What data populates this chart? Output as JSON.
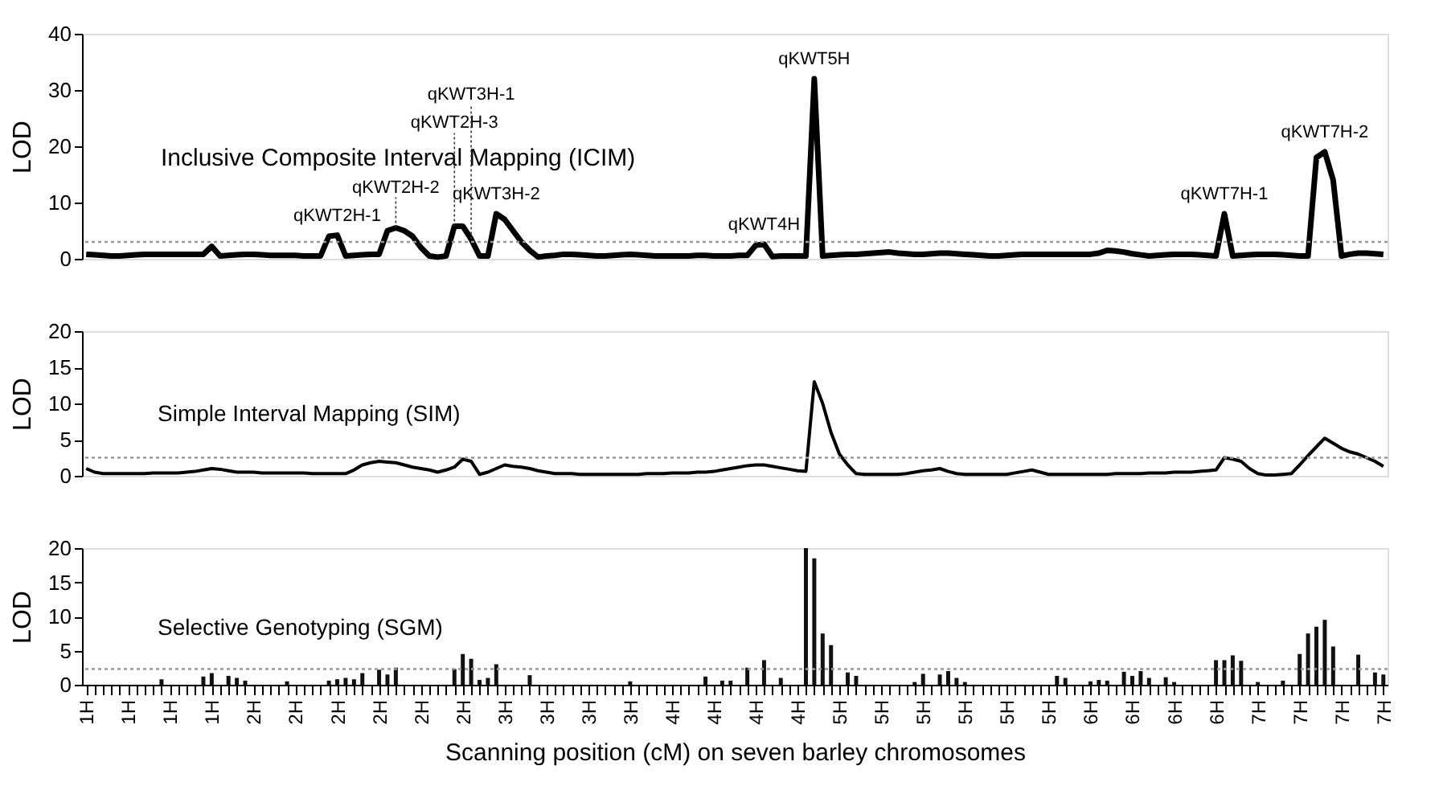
{
  "chart_data": [
    {
      "type": "line",
      "title": "Inclusive Composite Interval Mapping (ICIM)",
      "ylabel": "LOD",
      "ylim": [
        0,
        40
      ],
      "yticks": [
        0,
        10,
        20,
        30,
        40
      ],
      "tick_labels": "y",
      "categories": [
        null,
        null,
        null,
        null,
        null,
        null,
        null,
        null,
        null,
        null,
        null,
        null,
        null,
        null,
        null,
        null,
        null,
        null,
        null,
        null,
        null,
        null,
        null,
        null,
        null,
        null,
        null,
        null,
        null,
        null,
        null,
        null,
        null,
        null,
        null,
        null,
        null,
        null,
        null,
        null,
        null,
        null,
        null,
        null,
        null,
        null,
        null,
        null,
        null,
        null,
        null,
        null,
        null,
        null,
        null,
        null,
        null,
        null,
        null,
        null,
        null,
        null,
        null,
        null,
        null,
        null,
        null,
        null,
        null,
        null,
        null,
        null,
        null,
        null,
        null,
        null,
        null,
        null,
        null,
        null,
        null,
        null,
        null,
        null,
        null,
        null,
        null,
        null,
        null,
        null,
        null,
        null,
        null,
        null,
        null,
        null,
        null,
        null,
        null,
        null,
        null,
        null,
        null,
        null,
        null,
        null,
        null,
        null,
        null,
        null,
        null,
        null,
        null,
        null,
        null,
        null,
        null,
        null,
        null,
        null,
        null,
        null,
        null,
        null,
        null,
        null,
        null,
        null,
        null,
        null,
        null,
        null,
        null,
        null,
        null,
        null,
        null,
        null,
        null,
        null,
        null,
        null,
        null,
        null,
        null,
        null,
        null,
        null,
        null,
        null,
        null,
        null,
        null,
        null,
        null,
        null
      ],
      "series": [
        {
          "color": "#000000",
          "values": [
            0.8,
            0.7,
            0.6,
            0.5,
            0.5,
            0.6,
            0.7,
            0.8,
            0.8,
            0.8,
            0.8,
            0.8,
            0.8,
            0.8,
            0.8,
            2.2,
            0.5,
            0.6,
            0.7,
            0.8,
            0.8,
            0.7,
            0.6,
            0.6,
            0.6,
            0.6,
            0.5,
            0.5,
            0.5,
            4,
            4.2,
            0.5,
            0.6,
            0.7,
            0.8,
            0.8,
            5,
            5.5,
            5,
            4,
            2,
            0.5,
            0.3,
            0.5,
            5.8,
            5.8,
            3.5,
            0.5,
            0.5,
            8,
            7,
            5,
            3,
            1.5,
            0.3,
            0.5,
            0.6,
            0.8,
            0.8,
            0.7,
            0.6,
            0.5,
            0.5,
            0.6,
            0.7,
            0.8,
            0.7,
            0.6,
            0.5,
            0.5,
            0.5,
            0.5,
            0.5,
            0.6,
            0.6,
            0.5,
            0.5,
            0.5,
            0.6,
            0.6,
            2.4,
            2.6,
            0.4,
            0.5,
            0.5,
            0.5,
            0.5,
            32,
            0.5,
            0.6,
            0.7,
            0.8,
            0.8,
            0.9,
            1,
            1.1,
            1.2,
            1,
            0.9,
            0.8,
            0.8,
            0.9,
            1,
            1,
            0.9,
            0.8,
            0.7,
            0.6,
            0.5,
            0.5,
            0.6,
            0.7,
            0.8,
            0.8,
            0.8,
            0.8,
            0.8,
            0.8,
            0.8,
            0.8,
            0.8,
            1,
            1.5,
            1.4,
            1.2,
            0.9,
            0.7,
            0.5,
            0.6,
            0.7,
            0.8,
            0.8,
            0.8,
            0.7,
            0.6,
            0.5,
            8,
            0.5,
            0.6,
            0.7,
            0.8,
            0.8,
            0.8,
            0.7,
            0.6,
            0.5,
            0.5,
            18,
            19,
            14,
            0.5,
            0.8,
            1,
            1,
            0.9,
            0.8
          ]
        }
      ],
      "ref_lines": [
        {
          "axis": "y",
          "value": 3,
          "color": "#999999",
          "line_style": "dotted"
        }
      ],
      "annotations": [
        {
          "text": "qKWT2H-1",
          "y": 4.2
        },
        {
          "text": "qKWT2H-2",
          "y": 5.5
        },
        {
          "text": "qKWT2H-3",
          "y": 5.8
        },
        {
          "text": "qKWT3H-1",
          "y": 3.5
        },
        {
          "text": "qKWT3H-2",
          "y": 8
        },
        {
          "text": "qKWT4H",
          "y": 2.6
        },
        {
          "text": "qKWT5H",
          "y": 32
        },
        {
          "text": "qKWT7H-1",
          "y": 8
        },
        {
          "text": "qKWT7H-2",
          "y": 19
        }
      ]
    },
    {
      "type": "line",
      "title": "Simple Interval Mapping (SIM)",
      "ylabel": "LOD",
      "ylim": [
        0,
        20
      ],
      "yticks": [
        0,
        5,
        10,
        15,
        20
      ],
      "tick_labels": "y",
      "categories": [
        null,
        null,
        null,
        null,
        null,
        null,
        null,
        null,
        null,
        null,
        null,
        null,
        null,
        null,
        null,
        null,
        null,
        null,
        null,
        null,
        null,
        null,
        null,
        null,
        null,
        null,
        null,
        null,
        null,
        null,
        null,
        null,
        null,
        null,
        null,
        null,
        null,
        null,
        null,
        null,
        null,
        null,
        null,
        null,
        null,
        null,
        null,
        null,
        null,
        null,
        null,
        null,
        null,
        null,
        null,
        null,
        null,
        null,
        null,
        null,
        null,
        null,
        null,
        null,
        null,
        null,
        null,
        null,
        null,
        null,
        null,
        null,
        null,
        null,
        null,
        null,
        null,
        null,
        null,
        null,
        null,
        null,
        null,
        null,
        null,
        null,
        null,
        null,
        null,
        null,
        null,
        null,
        null,
        null,
        null,
        null,
        null,
        null,
        null,
        null,
        null,
        null,
        null,
        null,
        null,
        null,
        null,
        null,
        null,
        null,
        null,
        null,
        null,
        null,
        null,
        null,
        null,
        null,
        null,
        null,
        null,
        null,
        null,
        null,
        null,
        null,
        null,
        null,
        null,
        null,
        null,
        null,
        null,
        null,
        null,
        null,
        null,
        null,
        null,
        null,
        null,
        null,
        null,
        null,
        null,
        null,
        null,
        null,
        null,
        null,
        null,
        null,
        null,
        null,
        null,
        null
      ],
      "series": [
        {
          "color": "#000000",
          "values": [
            1,
            0.5,
            0.3,
            0.3,
            0.3,
            0.3,
            0.3,
            0.3,
            0.4,
            0.4,
            0.4,
            0.4,
            0.5,
            0.6,
            0.8,
            1,
            0.9,
            0.7,
            0.5,
            0.5,
            0.5,
            0.4,
            0.4,
            0.4,
            0.4,
            0.4,
            0.4,
            0.3,
            0.3,
            0.3,
            0.3,
            0.3,
            0.8,
            1.5,
            1.8,
            2,
            1.9,
            1.8,
            1.5,
            1.2,
            1,
            0.8,
            0.5,
            0.8,
            1.2,
            2.3,
            2,
            0.2,
            0.5,
            1,
            1.5,
            1.3,
            1.2,
            1,
            0.7,
            0.5,
            0.3,
            0.3,
            0.3,
            0.2,
            0.2,
            0.2,
            0.2,
            0.2,
            0.2,
            0.2,
            0.2,
            0.3,
            0.3,
            0.3,
            0.4,
            0.4,
            0.4,
            0.5,
            0.5,
            0.6,
            0.8,
            1,
            1.2,
            1.4,
            1.5,
            1.5,
            1.3,
            1.1,
            0.9,
            0.7,
            0.6,
            13,
            10,
            6,
            3,
            1.5,
            0.3,
            0.2,
            0.2,
            0.2,
            0.2,
            0.2,
            0.3,
            0.5,
            0.7,
            0.8,
            1,
            0.6,
            0.3,
            0.2,
            0.2,
            0.2,
            0.2,
            0.2,
            0.2,
            0.4,
            0.6,
            0.8,
            0.5,
            0.2,
            0.2,
            0.2,
            0.2,
            0.2,
            0.2,
            0.2,
            0.2,
            0.3,
            0.3,
            0.3,
            0.3,
            0.4,
            0.4,
            0.4,
            0.5,
            0.5,
            0.5,
            0.6,
            0.7,
            0.8,
            2.5,
            2.3,
            2,
            1,
            0.3,
            0.1,
            0.1,
            0.2,
            0.3,
            1.5,
            2.8,
            4,
            5.2,
            4.5,
            3.8,
            3.3,
            3,
            2.5,
            2,
            1.3
          ]
        }
      ],
      "ref_lines": [
        {
          "axis": "y",
          "value": 2.5,
          "color": "#999999",
          "line_style": "dotted"
        }
      ]
    },
    {
      "type": "bar",
      "title": "Selective Genotyping (SGM)",
      "ylabel": "LOD",
      "xlabel": "Scanning position (cM) on  seven barley chromosomes",
      "ylim": [
        0,
        20
      ],
      "yticks": [
        0,
        5,
        10,
        15,
        20
      ],
      "categories": [
        "1H",
        null,
        null,
        null,
        null,
        "1H",
        null,
        null,
        null,
        null,
        "1H",
        null,
        null,
        null,
        null,
        "1H",
        null,
        null,
        null,
        null,
        "2H",
        null,
        null,
        null,
        null,
        "2H",
        null,
        null,
        null,
        null,
        "2H",
        null,
        null,
        null,
        null,
        "2H",
        null,
        null,
        null,
        null,
        "2H",
        null,
        null,
        null,
        null,
        "2H",
        null,
        null,
        null,
        null,
        "3H",
        null,
        null,
        null,
        null,
        "3H",
        null,
        null,
        null,
        null,
        "3H",
        null,
        null,
        null,
        null,
        "3H",
        null,
        null,
        null,
        null,
        "4H",
        null,
        null,
        null,
        null,
        "4H",
        null,
        null,
        null,
        null,
        "4H",
        null,
        null,
        null,
        null,
        "4H",
        null,
        null,
        null,
        null,
        "5H",
        null,
        null,
        null,
        null,
        "5H",
        null,
        null,
        null,
        null,
        "5H",
        null,
        null,
        null,
        null,
        "5H",
        null,
        null,
        null,
        null,
        "5H",
        null,
        null,
        null,
        null,
        "5H",
        null,
        null,
        null,
        null,
        "6H",
        null,
        null,
        null,
        null,
        "6H",
        null,
        null,
        null,
        null,
        "6H",
        null,
        null,
        null,
        null,
        "6H",
        null,
        null,
        null,
        null,
        "7H",
        null,
        null,
        null,
        null,
        "7H",
        null,
        null,
        null,
        null,
        "7H",
        null,
        null,
        null,
        null,
        "7H"
      ],
      "series": [
        {
          "color": "#111111",
          "values": [
            null,
            null,
            null,
            null,
            null,
            null,
            null,
            null,
            null,
            0.8,
            null,
            null,
            null,
            null,
            1.2,
            1.7,
            null,
            1.3,
            1,
            0.6,
            null,
            null,
            null,
            null,
            0.5,
            null,
            null,
            null,
            null,
            0.6,
            0.8,
            1,
            0.8,
            1.7,
            null,
            2.2,
            1.5,
            2.5,
            null,
            null,
            null,
            null,
            null,
            null,
            2.3,
            4.5,
            3.8,
            0.7,
            1,
            3,
            null,
            null,
            null,
            1.4,
            null,
            null,
            null,
            null,
            null,
            null,
            null,
            null,
            null,
            null,
            null,
            0.5,
            null,
            null,
            null,
            null,
            null,
            null,
            null,
            null,
            1.2,
            null,
            0.6,
            0.6,
            null,
            2.5,
            null,
            3.6,
            null,
            1,
            null,
            null,
            20,
            18.5,
            7.5,
            5.8,
            null,
            1.8,
            1.3,
            null,
            null,
            null,
            null,
            null,
            null,
            0.4,
            1.6,
            null,
            1.5,
            2,
            1,
            0.4,
            null,
            null,
            null,
            null,
            null,
            null,
            null,
            null,
            null,
            null,
            1.3,
            1,
            null,
            null,
            0.5,
            0.7,
            0.6,
            null,
            1.9,
            1.3,
            2,
            1,
            null,
            1.1,
            0.4,
            null,
            null,
            null,
            null,
            3.6,
            3.6,
            4.3,
            3.5,
            null,
            0.4,
            null,
            null,
            0.6,
            null,
            4.5,
            7.5,
            8.5,
            9.5,
            5.6,
            null,
            null,
            4.4,
            null,
            1.8,
            1.5
          ]
        }
      ],
      "ref_lines": [
        {
          "axis": "y",
          "value": 2.3,
          "color": "#999999",
          "line_style": "dotted"
        }
      ]
    }
  ]
}
